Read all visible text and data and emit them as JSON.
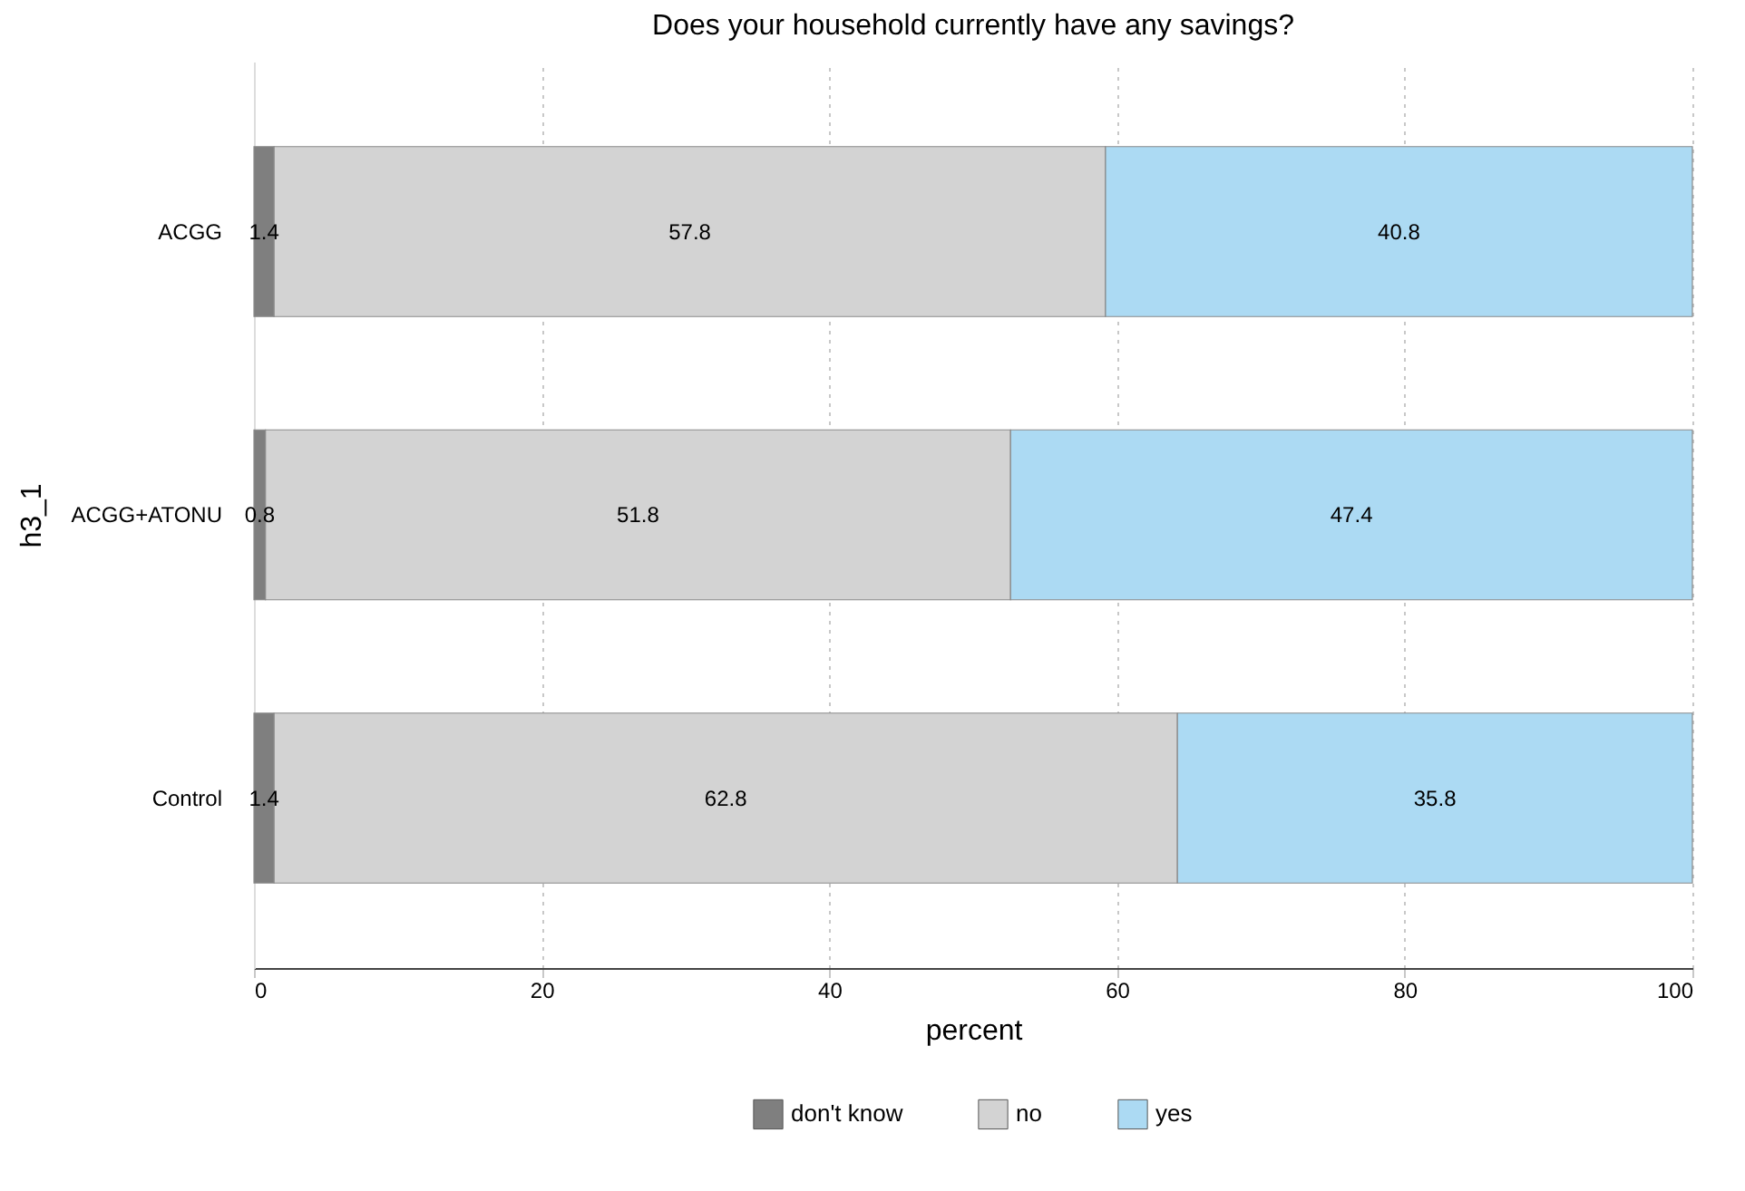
{
  "chart_data": {
    "type": "bar",
    "title": "Does your household currently have any savings?",
    "xlabel": "percent",
    "ylabel": "h3_1",
    "categories": [
      "ACGG",
      "ACGG+ATONU",
      "Control"
    ],
    "series": [
      {
        "name": "don't know",
        "color": "#7f7f7f",
        "values": [
          1.4,
          0.8,
          1.4
        ]
      },
      {
        "name": "no",
        "color": "#d3d3d3",
        "values": [
          57.8,
          51.8,
          62.8
        ]
      },
      {
        "name": "yes",
        "color": "#acdaf3",
        "values": [
          40.8,
          47.4,
          35.8
        ]
      }
    ],
    "stacked": true,
    "orientation": "horizontal",
    "xlim": [
      0,
      100
    ],
    "xticks": [
      0,
      20,
      40,
      60,
      80,
      100
    ],
    "grid": "x",
    "legend": "bottom",
    "data_labels": true
  }
}
